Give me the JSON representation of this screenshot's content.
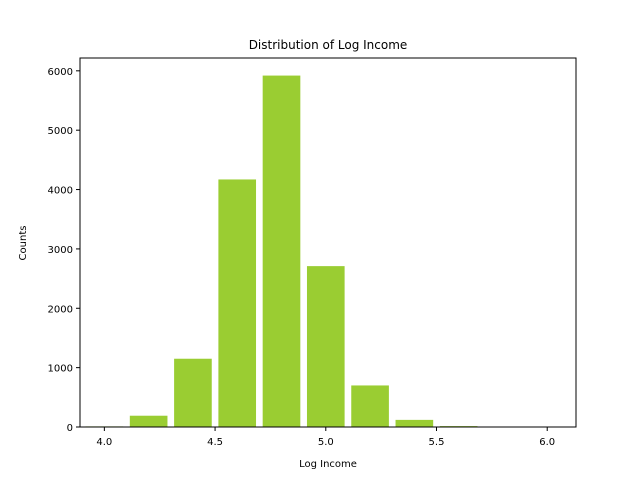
{
  "chart_data": {
    "type": "bar",
    "title": "Distribution of Log Income",
    "xlabel": "Log Income",
    "ylabel": "Counts",
    "bar_color": "#9acd32",
    "bar_width": 0.17,
    "x": [
      4.0,
      4.2,
      4.4,
      4.6,
      4.8,
      5.0,
      5.2,
      5.4,
      5.6,
      5.8
    ],
    "values": [
      10,
      190,
      1150,
      4170,
      5920,
      2710,
      700,
      120,
      15,
      2
    ],
    "xlim": [
      3.89,
      6.13
    ],
    "ylim": [
      0,
      6216
    ],
    "xticks": [
      "4.0",
      "4.5",
      "5.0",
      "5.5",
      "6.0"
    ],
    "yticks": [
      "0",
      "1000",
      "2000",
      "3000",
      "4000",
      "5000",
      "6000"
    ]
  }
}
